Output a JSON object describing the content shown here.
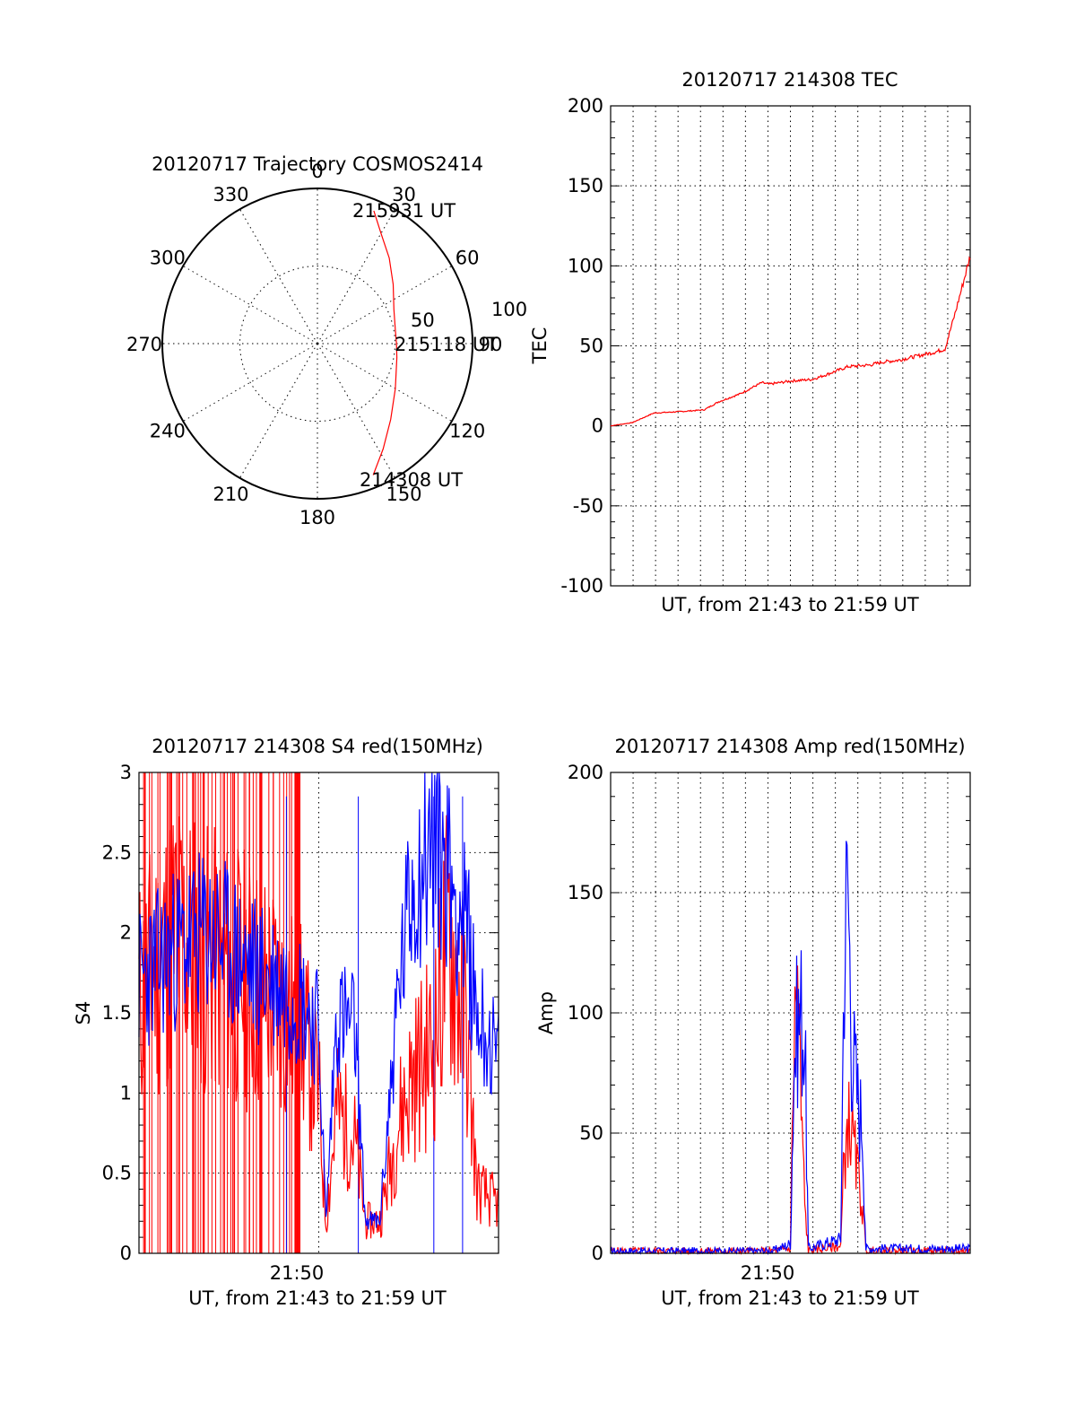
{
  "colors": {
    "red": "#ff0000",
    "blue": "#0000ff",
    "axis": "#000000"
  },
  "chart_data": [
    {
      "id": "trajectory",
      "type": "polar",
      "title": "20120717 Trajectory COSMOS2414",
      "angle_ticks": [
        "0",
        "30",
        "60",
        "90",
        "120",
        "150",
        "180",
        "210",
        "240",
        "270",
        "300",
        "330"
      ],
      "radial_labels": [
        "50",
        "100"
      ],
      "rlim": [
        0,
        100
      ],
      "series": [
        {
          "color": "#ff0000",
          "points": [
            {
              "az": 157,
              "r": 92
            },
            {
              "az": 148,
              "r": 80
            },
            {
              "az": 136,
              "r": 68
            },
            {
              "az": 120,
              "r": 58
            },
            {
              "az": 100,
              "r": 52
            },
            {
              "az": 90,
              "r": 51
            },
            {
              "az": 80,
              "r": 51
            },
            {
              "az": 66,
              "r": 54
            },
            {
              "az": 52,
              "r": 62
            },
            {
              "az": 40,
              "r": 72
            },
            {
              "az": 30,
              "r": 82
            },
            {
              "az": 23,
              "r": 93
            }
          ]
        }
      ],
      "annotations": [
        {
          "text": "215931 UT",
          "az": 23,
          "r": 93
        },
        {
          "text": "215118 UT",
          "az": 90,
          "r": 51
        },
        {
          "text": "214308 UT",
          "az": 157,
          "r": 92
        }
      ]
    },
    {
      "id": "tec",
      "type": "line",
      "title": "20120717 214308 TEC",
      "ylabel": "TEC",
      "xlabel": "UT, from 21:43 to 21:59 UT",
      "ylim": [
        -100,
        200
      ],
      "yticks": [
        "200",
        "150",
        "100",
        "50",
        "0",
        "-50",
        "-100"
      ],
      "grid": true,
      "series": [
        {
          "color": "#ff0000",
          "x": [
            0,
            0.06,
            0.12,
            0.2,
            0.26,
            0.3,
            0.36,
            0.42,
            0.44,
            0.5,
            0.56,
            0.6,
            0.66,
            0.72,
            0.76,
            0.8,
            0.86,
            0.9,
            0.93,
            0.96,
            1.0
          ],
          "y": [
            0,
            2,
            8,
            9,
            10,
            15,
            20,
            27,
            26,
            28,
            29,
            32,
            37,
            38,
            40,
            41,
            44,
            46,
            48,
            72,
            106
          ]
        }
      ]
    },
    {
      "id": "s4",
      "type": "line",
      "title": "20120717 214308 S4 red(150MHz)",
      "ylabel": "S4",
      "xlabel": "UT, from 21:43 to 21:59 UT",
      "xticks": [
        "21:50"
      ],
      "ylim": [
        0,
        3
      ],
      "yticks": [
        "3",
        "2.5",
        "2",
        "1.5",
        "1",
        "0.5",
        "0"
      ],
      "grid": true,
      "series": [
        {
          "color": "#ff0000",
          "x": [
            0,
            0.1,
            0.2,
            0.3,
            0.38,
            0.45,
            0.5,
            0.52,
            0.55,
            0.6,
            0.63,
            0.67,
            0.72,
            0.76,
            0.82,
            0.86,
            0.91,
            0.94,
            1.0
          ],
          "y": [
            1.6,
            2.0,
            1.8,
            1.7,
            1.6,
            1.4,
            1.0,
            0.2,
            0.9,
            0.7,
            0.2,
            0.2,
            0.8,
            1.1,
            1.3,
            2.0,
            1.4,
            0.4,
            0.3
          ]
        },
        {
          "color": "#0000ff",
          "x": [
            0,
            0.1,
            0.2,
            0.3,
            0.38,
            0.45,
            0.5,
            0.52,
            0.55,
            0.6,
            0.63,
            0.67,
            0.72,
            0.76,
            0.82,
            0.86,
            0.91,
            0.94,
            1.0
          ],
          "y": [
            1.7,
            1.9,
            2.0,
            1.8,
            1.7,
            1.6,
            1.4,
            0.2,
            1.5,
            1.4,
            0.2,
            0.2,
            1.6,
            2.3,
            2.6,
            2.4,
            2.0,
            1.5,
            1.2
          ]
        }
      ]
    },
    {
      "id": "amp",
      "type": "line",
      "title": "20120717 214308 Amp red(150MHz)",
      "ylabel": "Amp",
      "xlabel": "UT, from 21:43 to 21:59 UT",
      "xticks": [
        "21:50"
      ],
      "ylim": [
        0,
        200
      ],
      "yticks": [
        "200",
        "150",
        "100",
        "50",
        "0"
      ],
      "grid": true,
      "series": [
        {
          "color": "#ff0000",
          "x": [
            0,
            0.45,
            0.5,
            0.51,
            0.52,
            0.53,
            0.54,
            0.55,
            0.64,
            0.65,
            0.66,
            0.67,
            0.68,
            0.69,
            0.7,
            0.71,
            1.0
          ],
          "y": [
            1,
            1,
            2,
            90,
            110,
            60,
            20,
            1,
            3,
            40,
            55,
            50,
            40,
            30,
            20,
            1,
            1
          ]
        },
        {
          "color": "#0000ff",
          "x": [
            0,
            0.45,
            0.5,
            0.51,
            0.52,
            0.53,
            0.54,
            0.55,
            0.64,
            0.65,
            0.66,
            0.67,
            0.68,
            0.69,
            0.7,
            0.71,
            1.0
          ],
          "y": [
            1,
            1,
            4,
            80,
            95,
            100,
            90,
            2,
            6,
            130,
            155,
            90,
            75,
            60,
            55,
            2,
            2
          ]
        }
      ]
    }
  ]
}
